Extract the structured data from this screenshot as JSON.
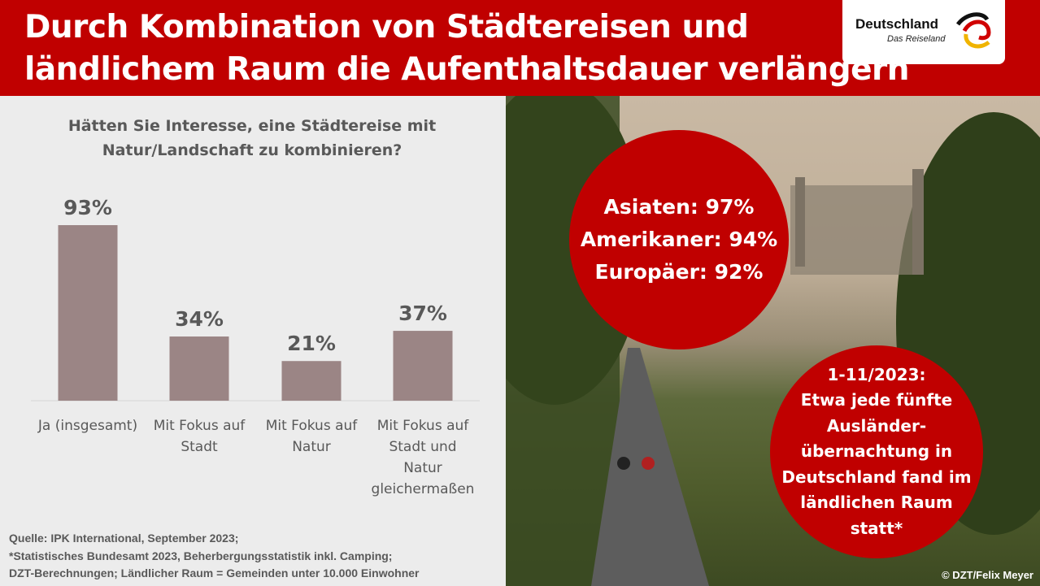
{
  "header": {
    "title_line1": "Durch Kombination von Städtereisen und",
    "title_line2": "ländlichem Raum die Aufenthaltsdauer verlängern"
  },
  "logo": {
    "name": "Deutschland",
    "tagline": "Das Reiseland"
  },
  "colors": {
    "brand_red": "#c00000",
    "bar": "#9b8585",
    "text": "#595959",
    "panel": "#ececec"
  },
  "chart_data": {
    "type": "bar",
    "title": "Hätten Sie Interesse, eine Städtereise mit Natur/Landschaft zu kombinieren?",
    "title_lines": [
      "Hätten Sie Interesse, eine Städtereise mit",
      "Natur/Landschaft zu kombinieren?"
    ],
    "categories": [
      "Ja (insgesamt)",
      "Mit Fokus auf Stadt",
      "Mit Fokus auf Natur",
      "Mit Fokus auf Stadt und Natur gleichermaßen"
    ],
    "category_lines": [
      [
        "Ja (insgesamt)"
      ],
      [
        "Mit Fokus auf",
        "Stadt"
      ],
      [
        "Mit Fokus auf",
        "Natur"
      ],
      [
        "Mit Fokus auf",
        "Stadt und",
        "Natur",
        "gleichermaßen"
      ]
    ],
    "values": [
      93,
      34,
      21,
      37
    ],
    "labels": [
      "93%",
      "34%",
      "21%",
      "37%"
    ],
    "unit": "%",
    "ylim": [
      0,
      100
    ],
    "xlabel": "",
    "ylabel": ""
  },
  "sources": [
    "Quelle: IPK International, September 2023;",
    "*Statistisches Bundesamt 2023, Beherbergungsstatistik inkl. Camping;",
    "DZT-Berechnungen; Ländlicher Raum = Gemeinden unter 10.000 Einwohner"
  ],
  "circle1": [
    "Asiaten: 97%",
    "Amerikaner: 94%",
    "Europäer: 92%"
  ],
  "circle2": [
    "1-11/2023:",
    "Etwa jede fünfte",
    "Ausländer-",
    "übernachtung in",
    "Deutschland fand im",
    "ländlichen Raum",
    "statt*"
  ],
  "photo_credit": "© DZT/Felix Meyer"
}
